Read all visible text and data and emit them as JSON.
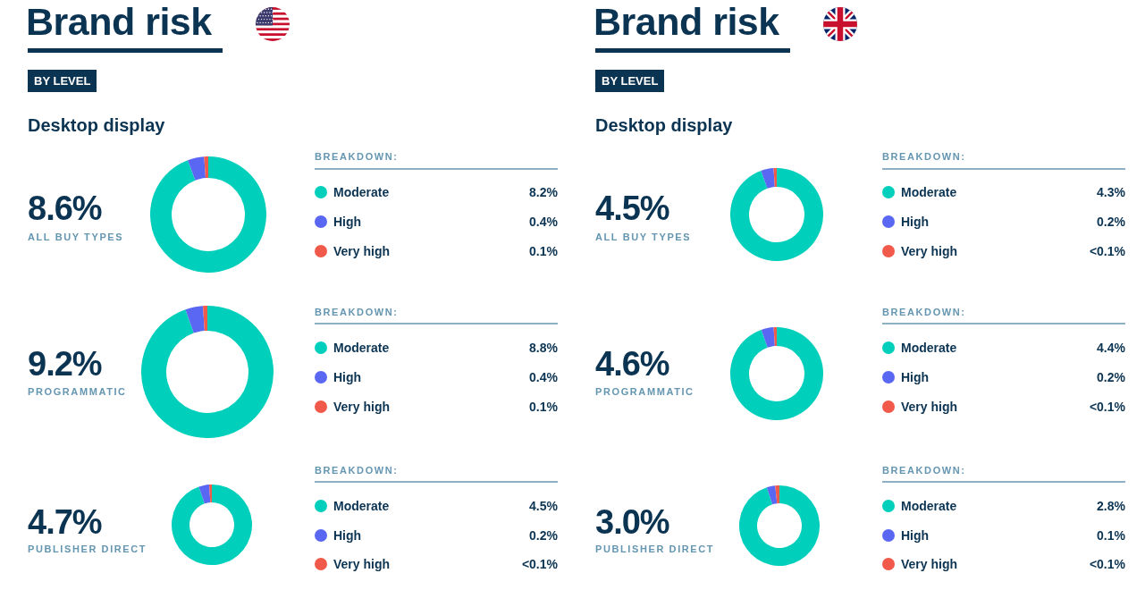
{
  "chart_data": [
    {
      "type": "donut",
      "title": "Brand risk",
      "subtitle": "BY LEVEL",
      "annotations": [
        "Desktop display",
        "8.6%",
        "ALL BUY TYPES"
      ],
      "legend_title": "BREAKDOWN:",
      "legend": "right",
      "categories": [
        "Moderate",
        "High",
        "Very high"
      ],
      "values": [
        8.2,
        0.4,
        0.1
      ],
      "value_labels": [
        "8.2%",
        "0.4%",
        "0.1%"
      ],
      "colors": [
        "#00cfbc",
        "#5a67f2",
        "#f15a4a"
      ]
    },
    {
      "type": "donut",
      "annotations": [
        "9.2%",
        "PROGRAMMATIC"
      ],
      "legend_title": "BREAKDOWN:",
      "legend": "right",
      "categories": [
        "Moderate",
        "High",
        "Very high"
      ],
      "values": [
        8.8,
        0.4,
        0.1
      ],
      "value_labels": [
        "8.8%",
        "0.4%",
        "0.1%"
      ],
      "colors": [
        "#00cfbc",
        "#5a67f2",
        "#f15a4a"
      ]
    },
    {
      "type": "donut",
      "annotations": [
        "4.7%",
        "PUBLISHER DIRECT"
      ],
      "legend_title": "BREAKDOWN:",
      "legend": "right",
      "categories": [
        "Moderate",
        "High",
        "Very high"
      ],
      "values": [
        4.5,
        0.2,
        0.05
      ],
      "value_labels": [
        "4.5%",
        "0.2%",
        "<0.1%"
      ],
      "colors": [
        "#00cfbc",
        "#5a67f2",
        "#f15a4a"
      ]
    },
    {
      "type": "donut",
      "title": "Brand risk",
      "subtitle": "BY LEVEL",
      "annotations": [
        "Desktop display",
        "4.5%",
        "ALL BUY TYPES"
      ],
      "legend_title": "BREAKDOWN:",
      "legend": "right",
      "categories": [
        "Moderate",
        "High",
        "Very high"
      ],
      "values": [
        4.3,
        0.2,
        0.05
      ],
      "value_labels": [
        "4.3%",
        "0.2%",
        "<0.1%"
      ],
      "colors": [
        "#00cfbc",
        "#5a67f2",
        "#f15a4a"
      ]
    },
    {
      "type": "donut",
      "annotations": [
        "4.6%",
        "PROGRAMMATIC"
      ],
      "legend_title": "BREAKDOWN:",
      "legend": "right",
      "categories": [
        "Moderate",
        "High",
        "Very high"
      ],
      "values": [
        4.4,
        0.2,
        0.05
      ],
      "value_labels": [
        "4.4%",
        "0.2%",
        "<0.1%"
      ],
      "colors": [
        "#00cfbc",
        "#5a67f2",
        "#f15a4a"
      ]
    },
    {
      "type": "donut",
      "annotations": [
        "3.0%",
        "PUBLISHER DIRECT"
      ],
      "legend_title": "BREAKDOWN:",
      "legend": "right",
      "categories": [
        "Moderate",
        "High",
        "Very high"
      ],
      "values": [
        2.8,
        0.1,
        0.05
      ],
      "value_labels": [
        "2.8%",
        "0.1%",
        "<0.1%"
      ],
      "colors": [
        "#00cfbc",
        "#5a67f2",
        "#f15a4a"
      ]
    }
  ]
}
